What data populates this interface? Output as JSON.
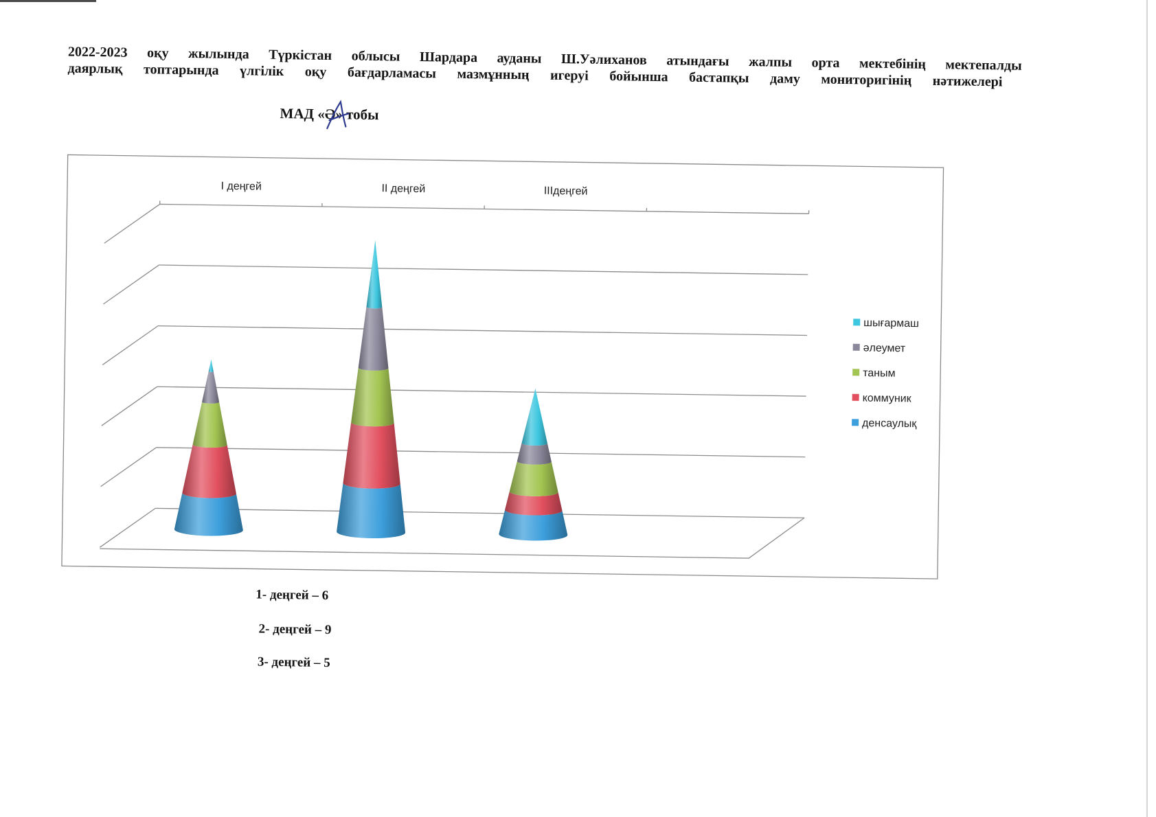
{
  "title": {
    "line1": "2022-2023 оқу жылында Түркістан облысы Шардара ауданы Ш.Уәлиханов атындағы жалпы орта мектебінің мектепалды",
    "line2": "даярлық топтарында үлгілік оқу бағдарламасы мазмұнның игеруі бойынша бастапқы даму мониторигінің нәтижелері"
  },
  "subtitle": {
    "prefix": "МАД «",
    "letter": "Ә",
    "suffix": "» тобы",
    "handwritten_mark": "А",
    "handwritten_color": "#2d3a8f"
  },
  "chart_data": {
    "type": "bar",
    "style": "3d-stacked-cone",
    "categories": [
      "I деңгей",
      "II деңгей",
      "IIIдеңгей",
      ""
    ],
    "series": [
      {
        "name": "денсаулық",
        "color": "#3d9fdc",
        "values": [
          1.2,
          1.6,
          0.8,
          null
        ]
      },
      {
        "name": "коммуник",
        "color": "#e2505f",
        "values": [
          1.6,
          2.0,
          0.6,
          null
        ]
      },
      {
        "name": "таным",
        "color": "#a3c552",
        "values": [
          1.4,
          1.8,
          1.0,
          null
        ]
      },
      {
        "name": "әлеумет",
        "color": "#8b889b",
        "values": [
          1.0,
          2.0,
          0.6,
          null
        ]
      },
      {
        "name": "шығармаш",
        "color": "#3cc6df",
        "values": [
          0.4,
          2.2,
          1.8,
          null
        ]
      }
    ],
    "ylim": [
      0,
      10
    ],
    "major_unit": 2,
    "gridlines": true,
    "value_axis_labels_shown": false,
    "legend": "right",
    "frame_color": "#8a8a8a"
  },
  "summary": [
    "1- деңгей – 6",
    "2- деңгей – 9",
    "3- деңгей – 5"
  ]
}
